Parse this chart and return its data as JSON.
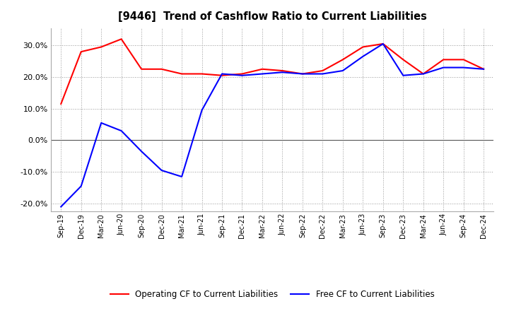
{
  "title": "[9446]  Trend of Cashflow Ratio to Current Liabilities",
  "x_labels": [
    "Sep-19",
    "Dec-19",
    "Mar-20",
    "Jun-20",
    "Sep-20",
    "Dec-20",
    "Mar-21",
    "Jun-21",
    "Sep-21",
    "Dec-21",
    "Mar-22",
    "Jun-22",
    "Sep-22",
    "Dec-22",
    "Mar-23",
    "Jun-23",
    "Sep-23",
    "Dec-23",
    "Mar-24",
    "Jun-24",
    "Sep-24",
    "Dec-24"
  ],
  "operating_cf": [
    0.115,
    0.28,
    0.295,
    0.32,
    0.225,
    0.225,
    0.21,
    0.21,
    0.205,
    0.21,
    0.225,
    0.22,
    0.21,
    0.22,
    0.255,
    0.295,
    0.305,
    0.255,
    0.21,
    0.255,
    0.255,
    0.225
  ],
  "free_cf": [
    -0.21,
    -0.145,
    0.055,
    0.03,
    -0.035,
    -0.095,
    -0.115,
    0.095,
    0.21,
    0.205,
    0.21,
    0.215,
    0.21,
    0.21,
    0.22,
    0.265,
    0.305,
    0.205,
    0.21,
    0.23,
    0.23,
    0.225
  ],
  "operating_cf_color": "#ff0000",
  "free_cf_color": "#0000ff",
  "ylim": [
    -0.225,
    0.355
  ],
  "yticks": [
    -0.2,
    -0.1,
    0.0,
    0.1,
    0.2,
    0.3
  ],
  "background_color": "#ffffff",
  "plot_bg_color": "#ffffff",
  "grid_color": "#999999",
  "legend_op": "Operating CF to Current Liabilities",
  "legend_free": "Free CF to Current Liabilities",
  "zero_line_color": "#555555"
}
